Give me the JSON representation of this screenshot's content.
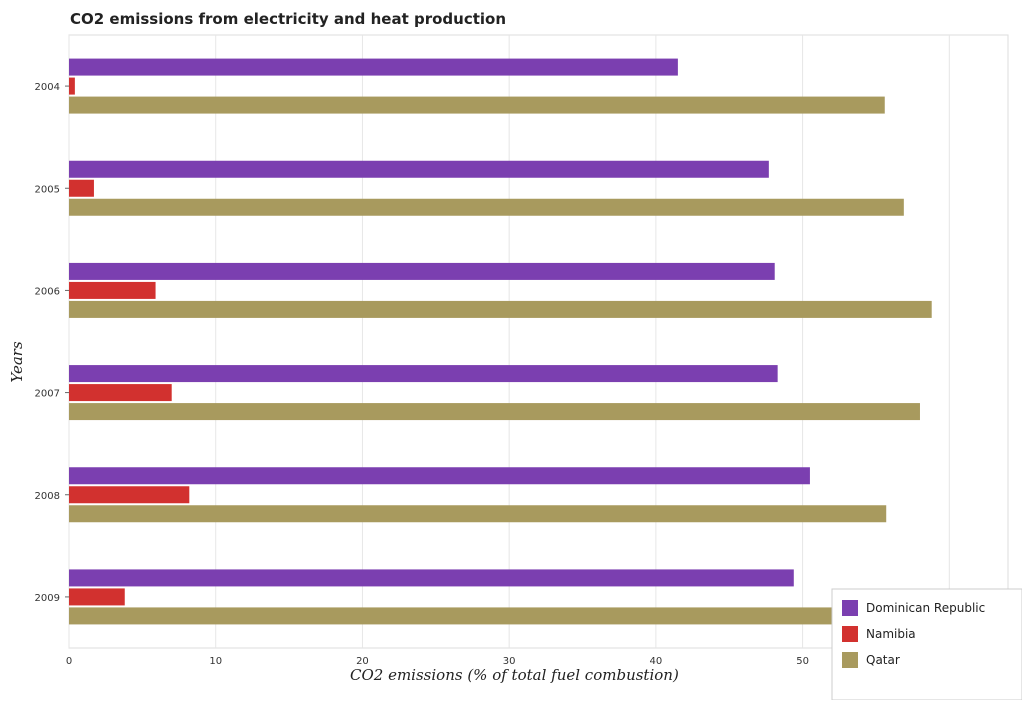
{
  "chart_data": {
    "type": "bar",
    "orientation": "horizontal",
    "title": "CO2 emissions from electricity and heat production",
    "xlabel": "CO2 emissions (% of total fuel combustion)",
    "ylabel": "Years",
    "categories": [
      "2004",
      "2005",
      "2006",
      "2007",
      "2008",
      "2009"
    ],
    "x_ticks": [
      "0",
      "10",
      "20",
      "30",
      "40",
      "50",
      "60"
    ],
    "xlim": [
      0,
      64
    ],
    "grid": true,
    "legend_position": "bottom-right",
    "series": [
      {
        "name": "Dominican Republic",
        "color": "#7b3fb0",
        "values": [
          41.5,
          47.7,
          48.1,
          48.3,
          50.5,
          49.4
        ]
      },
      {
        "name": "Namibia",
        "color": "#d2312f",
        "values": [
          0.4,
          1.7,
          5.9,
          7.0,
          8.2,
          3.8
        ]
      },
      {
        "name": "Qatar",
        "color": "#a89a5e",
        "values": [
          55.6,
          56.9,
          58.8,
          58.0,
          55.7,
          55.7
        ]
      }
    ]
  }
}
